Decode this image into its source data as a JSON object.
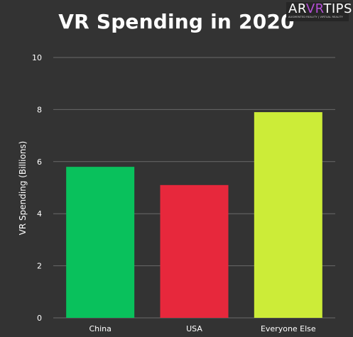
{
  "chart_data": {
    "type": "bar",
    "title": "VR Spending in 2020",
    "xlabel": "",
    "ylabel": "VR Spending (Billions)",
    "categories": [
      "China",
      "USA",
      "Everyone Else"
    ],
    "values": [
      5.8,
      5.1,
      7.9
    ],
    "colors": [
      "#09c15c",
      "#e7283c",
      "#ccec38"
    ],
    "ylim": [
      0,
      10
    ],
    "yticks": [
      0,
      2,
      4,
      6,
      8,
      10
    ],
    "grid": true,
    "legend": "none"
  },
  "logo": {
    "text_parts": [
      "AR",
      "VR",
      "TIPS"
    ],
    "subtitle": "AUGMENTED REALITY | VIRTUAL REALITY",
    "colors": {
      "ar": "#ffffff",
      "vr": "#b44fd6",
      "tips": "#ffffff"
    }
  },
  "theme": {
    "background": "#333333",
    "text": "#ffffff",
    "grid": "#6a6a6a"
  }
}
